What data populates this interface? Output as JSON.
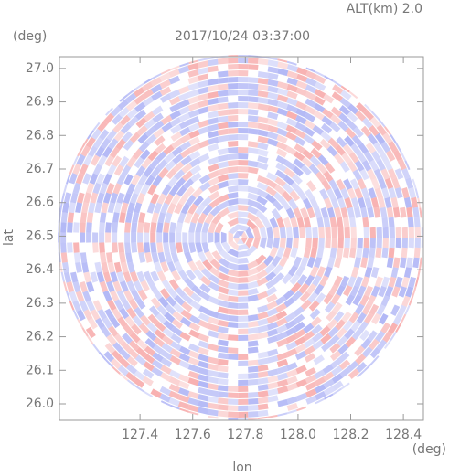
{
  "chart_data": {
    "type": "ppi",
    "title": "2017/10/24 03:37:00",
    "annotation": "ALT(km) 2.0",
    "y_unit": "(deg)",
    "x_unit": "(deg)",
    "x_label": "lon",
    "y_label": "lat",
    "xlim": [
      127.094,
      128.476
    ],
    "ylim": [
      25.951,
      27.035
    ],
    "xticks": [
      127.4,
      127.6,
      127.8,
      {
        "value": 128.0,
        "label": "128.0"
      },
      128.2,
      128.4
    ],
    "yticks": [
      {
        "value": 26.0,
        "label": "26.0"
      },
      26.1,
      26.2,
      26.3,
      26.4,
      26.5,
      26.6,
      26.7,
      26.8,
      26.9,
      {
        "value": 27.0,
        "label": "27.0"
      }
    ],
    "colors": [
      "#f7a8a8",
      "#aab0f5"
    ]
  }
}
